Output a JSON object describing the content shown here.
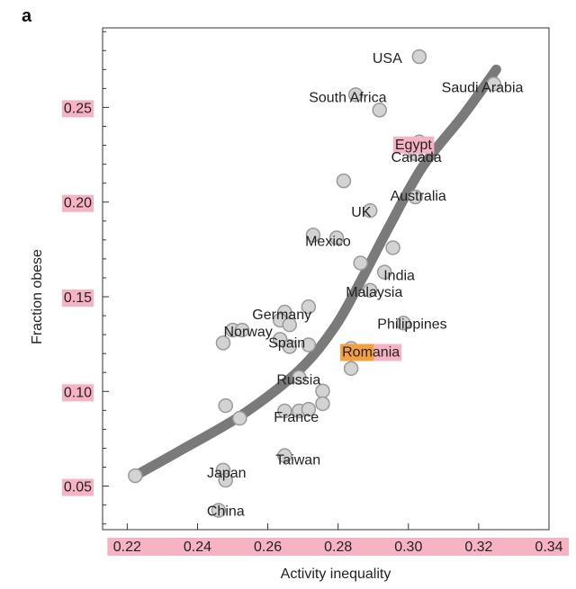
{
  "panel_letter": "a",
  "colors": {
    "fit_line": "#7a7a7a",
    "point_fill": "#d3d3d3",
    "point_stroke": "#9a9a9a",
    "highlight_pink": "#f7b3c3",
    "highlight_orange": "#f5a040",
    "axis": "#333333"
  },
  "chart_data": {
    "type": "scatter",
    "xlabel": "Activity inequality",
    "ylabel": "Fraction obese",
    "xlim": [
      0.213,
      0.34
    ],
    "ylim": [
      0.027,
      0.292
    ],
    "x_ticks": [
      0.22,
      0.24,
      0.26,
      0.28,
      0.3,
      0.32,
      0.34
    ],
    "x_tick_labels": [
      "0.22",
      "0.24",
      "0.26",
      "0.28",
      "0.30",
      "0.32",
      "0.34"
    ],
    "y_ticks": [
      0.05,
      0.1,
      0.15,
      0.2,
      0.25
    ],
    "y_tick_labels": [
      "0.05",
      "0.10",
      "0.15",
      "0.20",
      "0.25"
    ],
    "grid": false,
    "points": [
      {
        "x": 0.3031,
        "y": 0.2768,
        "label": "USA"
      },
      {
        "x": 0.3243,
        "y": 0.2624,
        "label": "Saudi Arabia"
      },
      {
        "x": 0.285,
        "y": 0.2567,
        "label": "South Africa"
      },
      {
        "x": 0.2918,
        "y": 0.2486,
        "label": "",
        "highlight": ""
      },
      {
        "x": 0.3031,
        "y": 0.2318,
        "label": "Egypt",
        "highlight": "pink"
      },
      {
        "x": 0.302,
        "y": 0.2255,
        "label": "Canada"
      },
      {
        "x": 0.2816,
        "y": 0.2112,
        "label": ""
      },
      {
        "x": 0.302,
        "y": 0.2027,
        "label": "Australia"
      },
      {
        "x": 0.2891,
        "y": 0.1955,
        "label": "UK"
      },
      {
        "x": 0.2729,
        "y": 0.1826,
        "label": ""
      },
      {
        "x": 0.2796,
        "y": 0.1811,
        "label": "Mexico"
      },
      {
        "x": 0.2956,
        "y": 0.1759,
        "label": ""
      },
      {
        "x": 0.2864,
        "y": 0.1678,
        "label": ""
      },
      {
        "x": 0.2932,
        "y": 0.163,
        "label": "India"
      },
      {
        "x": 0.2891,
        "y": 0.1534,
        "label": "Malaysia"
      },
      {
        "x": 0.2716,
        "y": 0.1447,
        "label": ""
      },
      {
        "x": 0.2648,
        "y": 0.1419,
        "label": "Germany"
      },
      {
        "x": 0.2635,
        "y": 0.1376,
        "label": ""
      },
      {
        "x": 0.2662,
        "y": 0.1352,
        "label": ""
      },
      {
        "x": 0.2986,
        "y": 0.1361,
        "label": "Philippines"
      },
      {
        "x": 0.25,
        "y": 0.1324,
        "label": "Norway"
      },
      {
        "x": 0.2527,
        "y": 0.1324,
        "label": ""
      },
      {
        "x": 0.2473,
        "y": 0.1256,
        "label": ""
      },
      {
        "x": 0.2635,
        "y": 0.1275,
        "label": "Spain"
      },
      {
        "x": 0.2662,
        "y": 0.1237,
        "label": ""
      },
      {
        "x": 0.2716,
        "y": 0.1246,
        "label": ""
      },
      {
        "x": 0.2837,
        "y": 0.1227,
        "label": "Romania",
        "highlight": "orange"
      },
      {
        "x": 0.2837,
        "y": 0.1121,
        "label": ""
      },
      {
        "x": 0.2689,
        "y": 0.1074,
        "label": "Russia"
      },
      {
        "x": 0.2756,
        "y": 0.1002,
        "label": ""
      },
      {
        "x": 0.248,
        "y": 0.0925,
        "label": ""
      },
      {
        "x": 0.2648,
        "y": 0.0897,
        "label": "France"
      },
      {
        "x": 0.2689,
        "y": 0.0897,
        "label": ""
      },
      {
        "x": 0.2716,
        "y": 0.0906,
        "label": ""
      },
      {
        "x": 0.2756,
        "y": 0.0935,
        "label": ""
      },
      {
        "x": 0.252,
        "y": 0.0858,
        "label": ""
      },
      {
        "x": 0.2648,
        "y": 0.0661,
        "label": "Taiwan"
      },
      {
        "x": 0.2473,
        "y": 0.0584,
        "label": "Japan"
      },
      {
        "x": 0.248,
        "y": 0.0531,
        "label": ""
      },
      {
        "x": 0.246,
        "y": 0.0372,
        "label": "China"
      },
      {
        "x": 0.2223,
        "y": 0.0555,
        "label": ""
      }
    ],
    "fit_line": {
      "x": [
        0.2223,
        0.2358,
        0.2527,
        0.2689,
        0.2791,
        0.2864,
        0.2945,
        0.304,
        0.3156,
        0.325
      ],
      "y": [
        0.0555,
        0.0695,
        0.0877,
        0.1112,
        0.1342,
        0.1582,
        0.187,
        0.2186,
        0.2458,
        0.27
      ]
    }
  }
}
